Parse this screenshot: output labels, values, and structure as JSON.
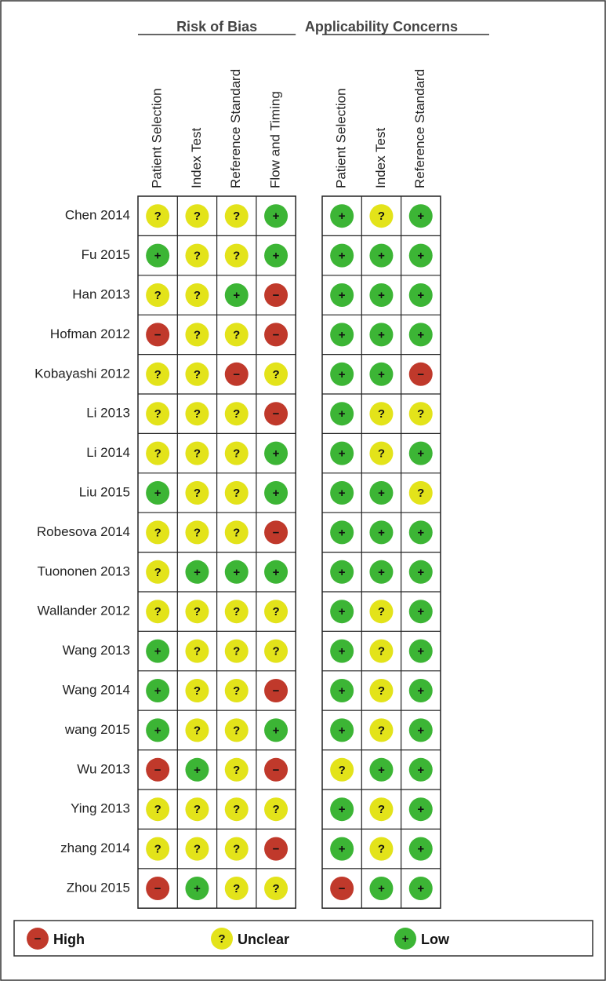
{
  "groups": [
    {
      "title": "Risk of Bias",
      "columns": [
        "Patient Selection",
        "Index Test",
        "Reference Standard",
        "Flow and Timing"
      ]
    },
    {
      "title": "Applicability Concerns",
      "columns": [
        "Patient Selection",
        "Index Test",
        "Reference Standard"
      ]
    }
  ],
  "rows": [
    {
      "study": "Chen 2014",
      "judgments": [
        "?",
        "?",
        "?",
        "+",
        "+",
        "?",
        "+"
      ]
    },
    {
      "study": "Fu 2015",
      "judgments": [
        "+",
        "?",
        "?",
        "+",
        "+",
        "+",
        "+"
      ]
    },
    {
      "study": "Han 2013",
      "judgments": [
        "?",
        "?",
        "+",
        "−",
        "+",
        "+",
        "+"
      ]
    },
    {
      "study": "Hofman 2012",
      "judgments": [
        "−",
        "?",
        "?",
        "−",
        "+",
        "+",
        "+"
      ]
    },
    {
      "study": "Kobayashi 2012",
      "judgments": [
        "?",
        "?",
        "−",
        "?",
        "+",
        "+",
        "−"
      ]
    },
    {
      "study": "Li 2013",
      "judgments": [
        "?",
        "?",
        "?",
        "−",
        "+",
        "?",
        "?"
      ]
    },
    {
      "study": "Li 2014",
      "judgments": [
        "?",
        "?",
        "?",
        "+",
        "+",
        "?",
        "+"
      ]
    },
    {
      "study": "Liu 2015",
      "judgments": [
        "+",
        "?",
        "?",
        "+",
        "+",
        "+",
        "?"
      ]
    },
    {
      "study": "Robesova 2014",
      "judgments": [
        "?",
        "?",
        "?",
        "−",
        "+",
        "+",
        "+"
      ]
    },
    {
      "study": "Tuononen 2013",
      "judgments": [
        "?",
        "+",
        "+",
        "+",
        "+",
        "+",
        "+"
      ]
    },
    {
      "study": "Wallander 2012",
      "judgments": [
        "?",
        "?",
        "?",
        "?",
        "+",
        "?",
        "+"
      ]
    },
    {
      "study": "Wang 2013",
      "judgments": [
        "+",
        "?",
        "?",
        "?",
        "+",
        "?",
        "+"
      ]
    },
    {
      "study": "Wang 2014",
      "judgments": [
        "+",
        "?",
        "?",
        "−",
        "+",
        "?",
        "+"
      ]
    },
    {
      "study": "wang 2015",
      "judgments": [
        "+",
        "?",
        "?",
        "+",
        "+",
        "?",
        "+"
      ]
    },
    {
      "study": "Wu 2013",
      "judgments": [
        "−",
        "+",
        "?",
        "−",
        "?",
        "+",
        "+"
      ]
    },
    {
      "study": "Ying 2013",
      "judgments": [
        "?",
        "?",
        "?",
        "?",
        "+",
        "?",
        "+"
      ]
    },
    {
      "study": "zhang 2014",
      "judgments": [
        "?",
        "?",
        "?",
        "−",
        "+",
        "?",
        "+"
      ]
    },
    {
      "study": "Zhou 2015",
      "judgments": [
        "−",
        "+",
        "?",
        "?",
        "−",
        "+",
        "+"
      ]
    }
  ],
  "legend": [
    {
      "symbol": "−",
      "label": "High",
      "color": "#c0392b"
    },
    {
      "symbol": "?",
      "label": "Unclear",
      "color": "#e3e31a"
    },
    {
      "symbol": "+",
      "label": "Low",
      "color": "#3cb535"
    }
  ]
}
